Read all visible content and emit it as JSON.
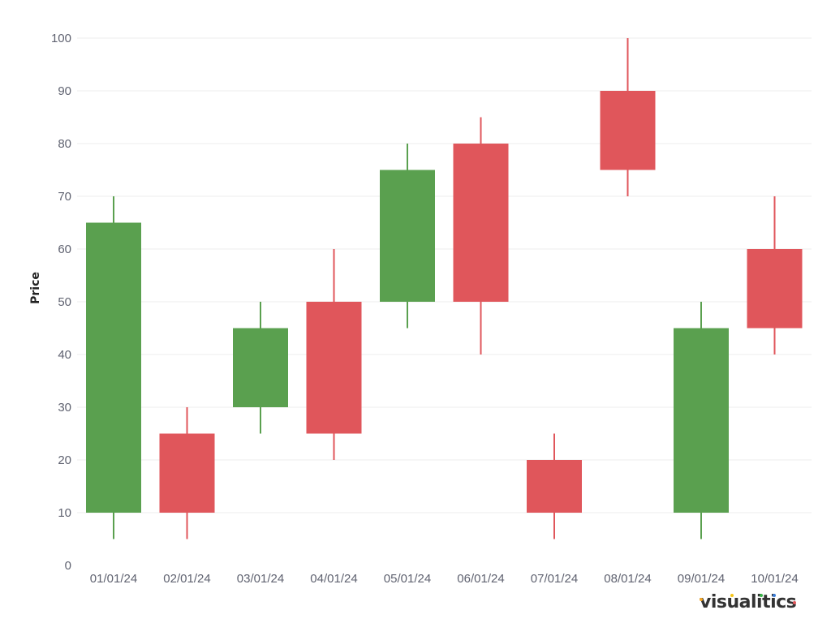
{
  "chart_data": {
    "type": "candlestick",
    "title": "",
    "xlabel": "",
    "ylabel": "Price",
    "ylim": [
      0,
      100
    ],
    "yticks": [
      0,
      10,
      20,
      30,
      40,
      50,
      60,
      70,
      80,
      90,
      100
    ],
    "grid": true,
    "categories": [
      "01/01/24",
      "02/01/24",
      "03/01/24",
      "04/01/24",
      "05/01/24",
      "06/01/24",
      "07/01/24",
      "08/01/24",
      "09/01/24",
      "10/01/24"
    ],
    "series": [
      {
        "name": "open",
        "values": [
          10,
          25,
          30,
          50,
          50,
          80,
          20,
          90,
          10,
          60
        ]
      },
      {
        "name": "high",
        "values": [
          70,
          30,
          50,
          60,
          80,
          85,
          25,
          100,
          50,
          70
        ]
      },
      {
        "name": "low",
        "values": [
          5,
          5,
          25,
          20,
          45,
          40,
          5,
          70,
          5,
          40
        ]
      },
      {
        "name": "close",
        "values": [
          65,
          10,
          45,
          25,
          75,
          50,
          10,
          75,
          45,
          45
        ]
      }
    ],
    "colors": {
      "increasing": "#5aa04f",
      "decreasing": "#e0565b",
      "grid": "#eeeeee"
    }
  },
  "branding": {
    "logo_text": "visualitics",
    "dot_colors": [
      "#f5a623",
      "#e0565b",
      "#f5c518",
      "#3ab54a",
      "#3b7dd8"
    ]
  }
}
